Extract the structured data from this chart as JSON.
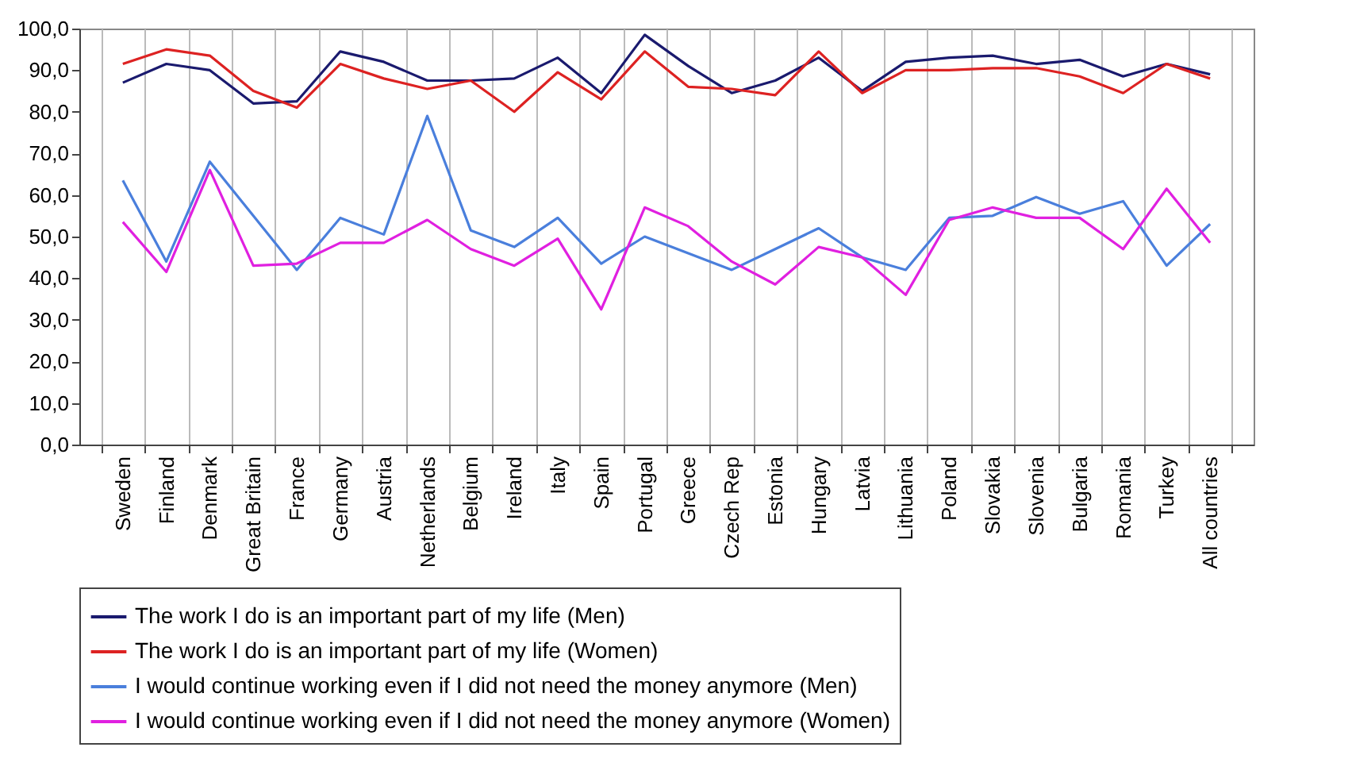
{
  "chart_data": {
    "type": "line",
    "categories": [
      "Sweden",
      "Finland",
      "Denmark",
      "Great Britain",
      "France",
      "Germany",
      "Austria",
      "Netherlands",
      "Belgium",
      "Ireland",
      "Italy",
      "Spain",
      "Portugal",
      "Greece",
      "Czech Rep",
      "Estonia",
      "Hungary",
      "Latvia",
      "Lithuania",
      "Poland",
      "Slovakia",
      "Slovenia",
      "Bulgaria",
      "Romania",
      "Turkey",
      "All countries"
    ],
    "series": [
      {
        "name": "The work I do is an important part of my life (Men)",
        "color": "#1a1a6e",
        "values": [
          87,
          91.5,
          90,
          82,
          82.5,
          94.5,
          92,
          87.5,
          87.5,
          88,
          93,
          84.5,
          98.5,
          91,
          84.5,
          87.5,
          93,
          85,
          92,
          93,
          93.5,
          91.5,
          92.5,
          88.5,
          91.5,
          89
        ]
      },
      {
        "name": "The work I do is an important part of my life (Women)",
        "color": "#dd2222",
        "values": [
          91.5,
          95,
          93.5,
          85,
          81,
          91.5,
          88,
          85.5,
          87.5,
          80,
          89.5,
          83,
          94.5,
          86,
          85.5,
          84,
          94.5,
          84.5,
          90,
          90,
          90.5,
          90.5,
          88.5,
          84.5,
          91.5,
          88
        ]
      },
      {
        "name": "I would continue working even if I did not need the money anymore (Men)",
        "color": "#4a7fdc",
        "values": [
          63.5,
          44,
          68,
          55,
          42,
          54.5,
          50.5,
          79,
          51.5,
          47.5,
          54.5,
          43.5,
          50,
          46,
          42,
          47,
          52,
          45,
          42,
          54.5,
          55,
          59.5,
          55.5,
          58.5,
          43,
          53
        ]
      },
      {
        "name": "I would continue working even if I did not need the money anymore (Women)",
        "color": "#e020e0",
        "values": [
          53.5,
          41.5,
          66,
          43,
          43.5,
          48.5,
          48.5,
          54,
          47,
          43,
          49.5,
          32.5,
          57,
          52.5,
          44,
          38.5,
          47.5,
          45,
          36,
          54,
          57,
          54.5,
          54.5,
          47,
          61.5,
          48.5
        ]
      }
    ],
    "ylim": [
      0,
      100
    ],
    "yticks": [
      {
        "value": 0,
        "label": "0,0"
      },
      {
        "value": 10,
        "label": "10,0"
      },
      {
        "value": 20,
        "label": "20,0"
      },
      {
        "value": 30,
        "label": "30,0"
      },
      {
        "value": 40,
        "label": "40,0"
      },
      {
        "value": 50,
        "label": "50,0"
      },
      {
        "value": 60,
        "label": "60,0"
      },
      {
        "value": 70,
        "label": "70,0"
      },
      {
        "value": 80,
        "label": "80,0"
      },
      {
        "value": 90,
        "label": "90,0"
      },
      {
        "value": 100,
        "label": "100,0"
      }
    ],
    "grid": "x",
    "legend": "bottom",
    "marker": "none",
    "line_style": "solid"
  }
}
